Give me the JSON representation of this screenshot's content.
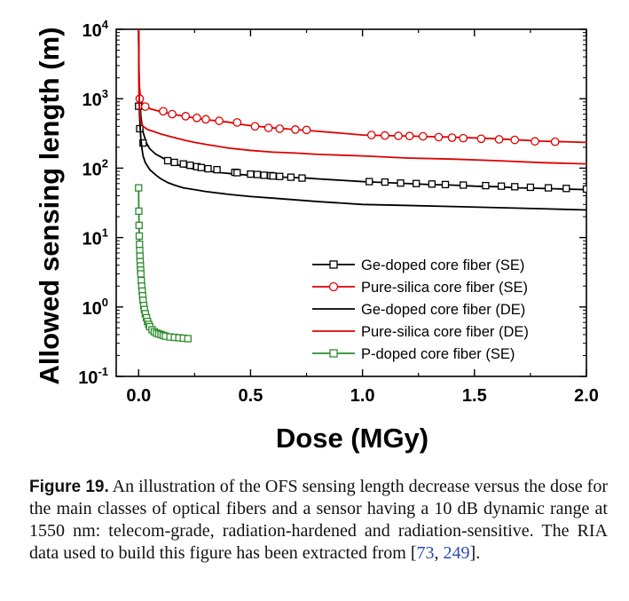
{
  "chart_data": {
    "type": "line",
    "xlabel": "Dose (MGy)",
    "ylabel": "Allowed sensing length (m)",
    "x_ticks": [
      "0.0",
      "0.5",
      "1.0",
      "1.5",
      "2.0"
    ],
    "y_ticks": [
      {
        "base": "10",
        "exp": "-1"
      },
      {
        "base": "10",
        "exp": "0"
      },
      {
        "base": "10",
        "exp": "1"
      },
      {
        "base": "10",
        "exp": "2"
      },
      {
        "base": "10",
        "exp": "3"
      },
      {
        "base": "10",
        "exp": "4"
      }
    ],
    "xlim": [
      -0.1,
      2.0
    ],
    "ylim": [
      0.1,
      10000
    ],
    "yscale": "log",
    "grid": false,
    "legend_position": "bottom-right",
    "series": [
      {
        "name": "Ge-doped core fiber (SE)",
        "color": "#000000",
        "marker": "square",
        "x": [
          0.0,
          0.001,
          0.003,
          0.005,
          0.01,
          0.02,
          0.035,
          0.05,
          0.075,
          0.1,
          0.13,
          0.16,
          0.2,
          0.25,
          0.3,
          0.35,
          0.4,
          0.45,
          0.5,
          0.55,
          0.6,
          0.65,
          0.7,
          0.75,
          0.8,
          0.9,
          1.0,
          1.1,
          1.2,
          1.3,
          1.4,
          1.5,
          1.6,
          1.7,
          1.8,
          1.9,
          2.0
        ],
        "y": [
          10000,
          3000,
          1500,
          1000,
          560,
          330,
          230,
          190,
          160,
          145,
          128,
          116,
          105,
          97,
          92,
          87,
          84,
          81,
          79,
          77,
          76,
          74,
          73,
          72,
          70,
          67,
          64,
          62,
          60,
          58,
          57,
          55,
          54,
          52,
          51,
          50,
          49
        ],
        "marker_x": [
          0.0,
          0.005,
          0.02,
          0.13,
          0.16,
          0.2,
          0.23,
          0.26,
          0.28,
          0.31,
          0.35,
          0.43,
          0.44,
          0.5,
          0.53,
          0.56,
          0.59,
          0.6,
          0.63,
          0.68,
          0.73,
          1.03,
          1.1,
          1.17,
          1.24,
          1.31,
          1.37,
          1.45,
          1.55,
          1.62,
          1.68,
          1.75,
          1.83,
          1.91,
          2.0
        ],
        "marker_y": [
          780,
          370,
          230,
          128,
          121,
          115,
          110,
          105,
          102,
          98,
          95,
          87,
          86,
          82,
          81,
          79,
          78,
          77,
          76,
          74,
          72,
          64,
          63,
          61,
          60,
          59,
          58,
          57,
          56,
          55,
          54,
          53,
          52,
          51,
          50
        ]
      },
      {
        "name": "Pure-silica core fiber (SE)",
        "color": "#e00000",
        "marker": "circle",
        "x": [
          0.0,
          0.001,
          0.002,
          0.004,
          0.007,
          0.01,
          0.02,
          0.05,
          0.1,
          0.15,
          0.2,
          0.25,
          0.3,
          0.35,
          0.4,
          0.45,
          0.5,
          0.55,
          0.6,
          0.65,
          0.7,
          0.75,
          0.8,
          0.9,
          1.0,
          1.2,
          1.4,
          1.6,
          1.8,
          2.0
        ],
        "y": [
          10000,
          5000,
          2500,
          1500,
          1150,
          1000,
          820,
          720,
          650,
          600,
          560,
          530,
          500,
          480,
          460,
          430,
          410,
          395,
          380,
          370,
          360,
          350,
          340,
          320,
          300,
          290,
          280,
          265,
          245,
          235
        ],
        "marker_x": [
          0.005,
          0.03,
          0.11,
          0.15,
          0.21,
          0.26,
          0.3,
          0.36,
          0.44,
          0.52,
          0.58,
          0.63,
          0.7,
          0.75,
          1.04,
          1.1,
          1.16,
          1.21,
          1.27,
          1.34,
          1.4,
          1.45,
          1.53,
          1.61,
          1.68,
          1.77,
          1.86
        ],
        "marker_y": [
          1000,
          770,
          660,
          600,
          560,
          530,
          505,
          480,
          455,
          400,
          380,
          370,
          360,
          355,
          300,
          295,
          292,
          290,
          287,
          280,
          275,
          270,
          265,
          260,
          255,
          243,
          240
        ]
      },
      {
        "name": "Ge-doped core fiber (DE)",
        "color": "#000000",
        "marker": "none",
        "x": [
          0.0,
          0.001,
          0.002,
          0.004,
          0.007,
          0.01,
          0.015,
          0.02,
          0.03,
          0.05,
          0.08,
          0.1,
          0.13,
          0.16,
          0.2,
          0.25,
          0.3,
          0.4,
          0.5,
          0.6,
          0.8,
          1.0,
          1.2,
          1.4,
          1.6,
          1.8,
          2.0
        ],
        "y": [
          10000,
          3000,
          1200,
          600,
          380,
          260,
          190,
          150,
          120,
          95,
          78,
          70,
          62,
          57,
          52,
          49,
          46,
          42,
          39,
          37,
          33,
          30,
          29,
          28,
          27,
          26,
          25
        ]
      },
      {
        "name": "Pure-silica core fiber (DE)",
        "color": "#e00000",
        "marker": "none",
        "x": [
          0.0,
          0.001,
          0.002,
          0.004,
          0.007,
          0.01,
          0.02,
          0.04,
          0.07,
          0.1,
          0.15,
          0.2,
          0.25,
          0.3,
          0.4,
          0.5,
          0.6,
          0.7,
          0.8,
          1.0,
          1.2,
          1.4,
          1.6,
          1.8,
          2.0
        ],
        "y": [
          10000,
          3000,
          1300,
          800,
          570,
          470,
          400,
          360,
          335,
          310,
          280,
          255,
          235,
          220,
          195,
          180,
          170,
          165,
          158,
          150,
          140,
          135,
          128,
          120,
          115
        ]
      },
      {
        "name": "P-doped core fiber (SE)",
        "color": "#2e8b2e",
        "marker": "square",
        "x": [
          0.0,
          0.001,
          0.002,
          0.003,
          0.004,
          0.005,
          0.006,
          0.007,
          0.008,
          0.009,
          0.01,
          0.012,
          0.014,
          0.016,
          0.018,
          0.02,
          0.023,
          0.026,
          0.03,
          0.035,
          0.04,
          0.045,
          0.05,
          0.06,
          0.07,
          0.08,
          0.09,
          0.1,
          0.11,
          0.12,
          0.14,
          0.16,
          0.18,
          0.2,
          0.22
        ],
        "y": [
          52,
          24,
          15,
          10.5,
          8,
          6.5,
          5.4,
          4.5,
          3.9,
          3.4,
          3.0,
          2.4,
          2.0,
          1.7,
          1.45,
          1.25,
          1.05,
          0.92,
          0.8,
          0.7,
          0.62,
          0.56,
          0.52,
          0.47,
          0.44,
          0.42,
          0.41,
          0.4,
          0.39,
          0.38,
          0.37,
          0.365,
          0.36,
          0.355,
          0.35
        ]
      }
    ]
  },
  "caption": {
    "label": "Figure 19.",
    "text_part1": " An illustration of the OFS sensing length decrease versus the dose for the main classes of optical fibers and a sensor having a 10 dB dynamic range at 1550 nm: telecom-grade, radiation-hardened and radiation-sensitive. The RIA data used to build this figure has been extracted from [",
    "ref1": "73",
    "sep": ", ",
    "ref2": "249",
    "text_part2": "]."
  }
}
